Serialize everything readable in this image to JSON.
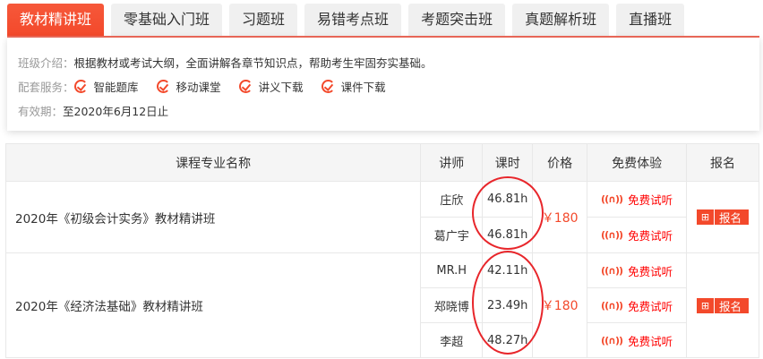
{
  "tabs": [
    "教材精讲班",
    "零基础入门班",
    "习题班",
    "易错考点班",
    "考题突击班",
    "真题解析班",
    "直播班"
  ],
  "info": {
    "intro_label": "班级介绍：",
    "intro": "根据教材或考试大纲，全面讲解各章节知识点，帮助考生牢固夯实基础。",
    "services_label": "配套服务：",
    "services": [
      "智能题库",
      "移动课堂",
      "讲义下载",
      "课件下载"
    ],
    "validity_label": "有效期：",
    "validity": "至2020年6月12日止"
  },
  "table": {
    "headers": [
      "课程专业名称",
      "讲师",
      "课时",
      "价格",
      "免费体验",
      "报名"
    ],
    "trial_label": "免费试听",
    "signup_label": "报名",
    "courses": [
      {
        "name": "2020年《初级会计实务》教材精讲班",
        "price": "￥180",
        "lessons": [
          {
            "teacher": "庄欣",
            "hours": "46.81h"
          },
          {
            "teacher": "葛广宇",
            "hours": "46.81h"
          }
        ]
      },
      {
        "name": "2020年《经济法基础》教材精讲班",
        "price": "￥180",
        "lessons": [
          {
            "teacher": "MR.H",
            "hours": "42.11h"
          },
          {
            "teacher": "郑晓博",
            "hours": "23.49h"
          },
          {
            "teacher": "李超",
            "hours": "48.27h"
          }
        ]
      }
    ]
  },
  "colors": {
    "accent": "#f3492b",
    "annotation": "#e8262b"
  }
}
